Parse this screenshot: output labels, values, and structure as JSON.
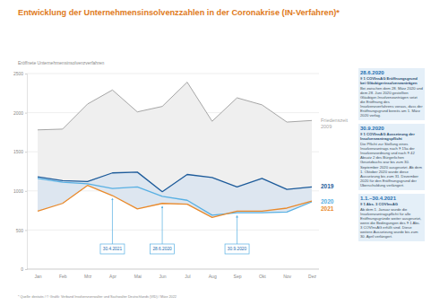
{
  "chart_data": {
    "type": "line",
    "title": "Entwicklung der Unternehmensinsolvenzzahlen in der Coronakrise (IN-Verfahren)*",
    "y_label": "Eröffnete Unternehmensinsolvenzverfahren",
    "categories": [
      "Jan",
      "Feb",
      "Mrz",
      "Apr",
      "Mai",
      "Jun",
      "Jul",
      "Aug",
      "Sep",
      "Okt",
      "Nov",
      "Dez"
    ],
    "series": [
      {
        "name": "Friedenszeit 2009",
        "color": "#a6a6a6",
        "values": [
          1780,
          1790,
          2110,
          2290,
          2010,
          2080,
          2390,
          1890,
          2190,
          2100,
          1880,
          1900
        ]
      },
      {
        "name": "2019",
        "color": "#1d5b9a",
        "values": [
          1180,
          1130,
          1120,
          1230,
          1240,
          990,
          1210,
          1170,
          1050,
          1160,
          1020,
          1050
        ]
      },
      {
        "name": "2020",
        "color": "#58b0e3",
        "values": [
          1160,
          1110,
          1090,
          1030,
          1050,
          930,
          880,
          690,
          720,
          720,
          730,
          860
        ]
      },
      {
        "name": "2021",
        "color": "#e98a2c",
        "values": [
          740,
          840,
          1070,
          940,
          770,
          840,
          830,
          660,
          740,
          740,
          780,
          870
        ]
      }
    ],
    "ylim": [
      0,
      2500
    ],
    "yticks": [
      0,
      500,
      1000,
      1500,
      2000,
      2500
    ],
    "grid": true,
    "annotations": [
      {
        "label": "30.4.2021",
        "category": "Apr"
      },
      {
        "label": "28.6.2020",
        "category": "Jun"
      },
      {
        "label": "30.9.2020",
        "category": "Sep"
      }
    ],
    "notes": [
      {
        "date": "28.6.2020",
        "heading": "§ 1 COVInsAG Eröffnungsgrund bei Gläubigerinsolvenzanträgen",
        "text": "Bei zwischen dem 28. März 2020 und dem 28. Juni 2020 gestellten Gläubiger-Insolvenzanträgen setzt die Eröffnung des Insolvenzverfahrens voraus, dass der Eröffnungsgrund bereits am 1. März 2020 vorlag."
      },
      {
        "date": "30.9.2020",
        "heading": "§ 1 COVInsAG Aussetzung der Insolvenzantragspflicht",
        "text": "Die Pflicht zur Stellung eines Insolvenzantrags nach § 15a der Insolvenzordnung und nach § 42 Absatz 2 des Bürgerlichen Gesetzbuchs war bis zum 30. September 2020 ausgesetzt. Ab dem 1. Oktober 2020 wurde diese Aussetzung bis zum 31. Dezember 2020 für den Eröffnungsgrund der Überschuldung verlängert."
      },
      {
        "date": "1.1.–30.4.2021",
        "heading": "§ 1 Abs. 3 COVInsAG",
        "text": "Ab dem 1. Januar wurde die Insolvenzantragspflicht für alle Eröffnungsgründe weiter ausgesetzt, wenn die Bedingungen des § 1 Abs. 3 COVInsAG erfüllt sind. Diese weitere Aussetzung wurde bis zum 30. April verlängert."
      }
    ],
    "source": "* Quelle: destatis / © Grafik: Verband Insolvenzverwalter und Sachwalter Deutschlands (VID) / März 2022"
  }
}
